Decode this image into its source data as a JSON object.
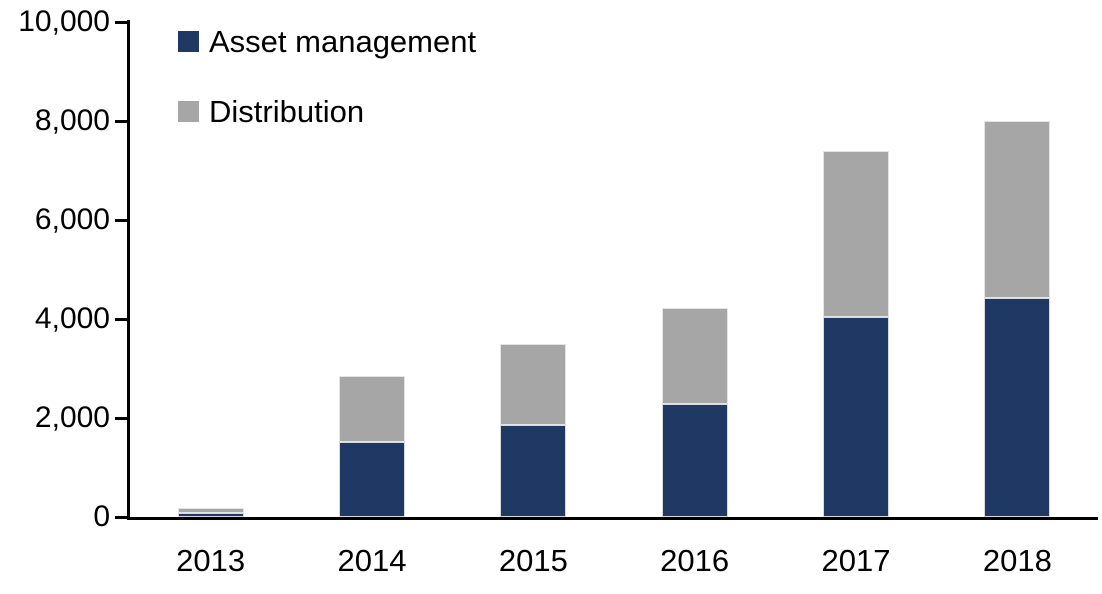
{
  "chart_data": {
    "type": "bar",
    "stacked": true,
    "title": "",
    "xlabel": "",
    "ylabel": "",
    "categories": [
      "2013",
      "2014",
      "2015",
      "2016",
      "2017",
      "2018"
    ],
    "series": [
      {
        "name": "Asset management",
        "color": "#1f3864",
        "values": [
          75,
          1520,
          1850,
          2290,
          4040,
          4420
        ]
      },
      {
        "name": "Distribution",
        "color": "#a6a6a6",
        "values": [
          100,
          1330,
          1650,
          1940,
          3360,
          3580
        ]
      }
    ],
    "totals": [
      175,
      2850,
      3500,
      4230,
      7400,
      8000
    ],
    "ylim": [
      0,
      10000
    ],
    "ytick_interval": 2000,
    "ytick_labels": [
      "0",
      "2,000",
      "4,000",
      "6,000",
      "8,000",
      "10,000"
    ],
    "grid": false,
    "legend_position": "top-left-inside",
    "axis_color": "#000000",
    "background_color": "#ffffff"
  }
}
